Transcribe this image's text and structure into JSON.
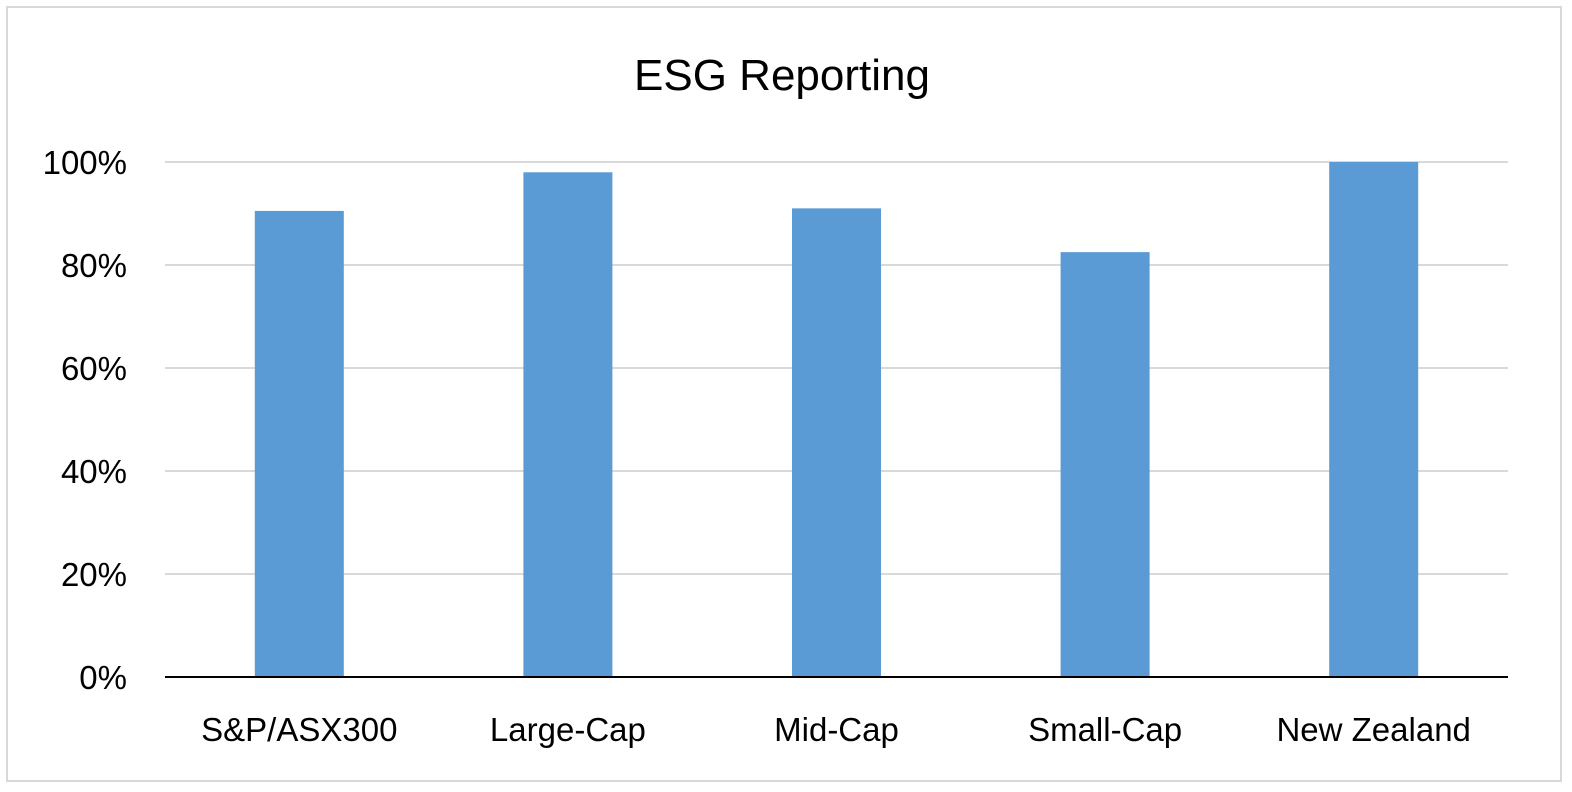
{
  "chart_data": {
    "type": "bar",
    "title": "ESG Reporting",
    "xlabel": "",
    "ylabel": "",
    "categories": [
      "S&P/ASX300",
      "Large-Cap",
      "Mid-Cap",
      "Small-Cap",
      "New Zealand"
    ],
    "values": [
      90.5,
      98,
      91,
      82.5,
      100
    ],
    "ylim": [
      0,
      100
    ],
    "yticks": [
      0,
      20,
      40,
      60,
      80,
      100
    ],
    "ytick_labels": [
      "0%",
      "20%",
      "40%",
      "60%",
      "80%",
      "100%"
    ],
    "grid": true,
    "legend": "none",
    "bar_color": "#5b9bd5",
    "grid_color": "#d9d9d9",
    "axis_color": "#000000"
  }
}
